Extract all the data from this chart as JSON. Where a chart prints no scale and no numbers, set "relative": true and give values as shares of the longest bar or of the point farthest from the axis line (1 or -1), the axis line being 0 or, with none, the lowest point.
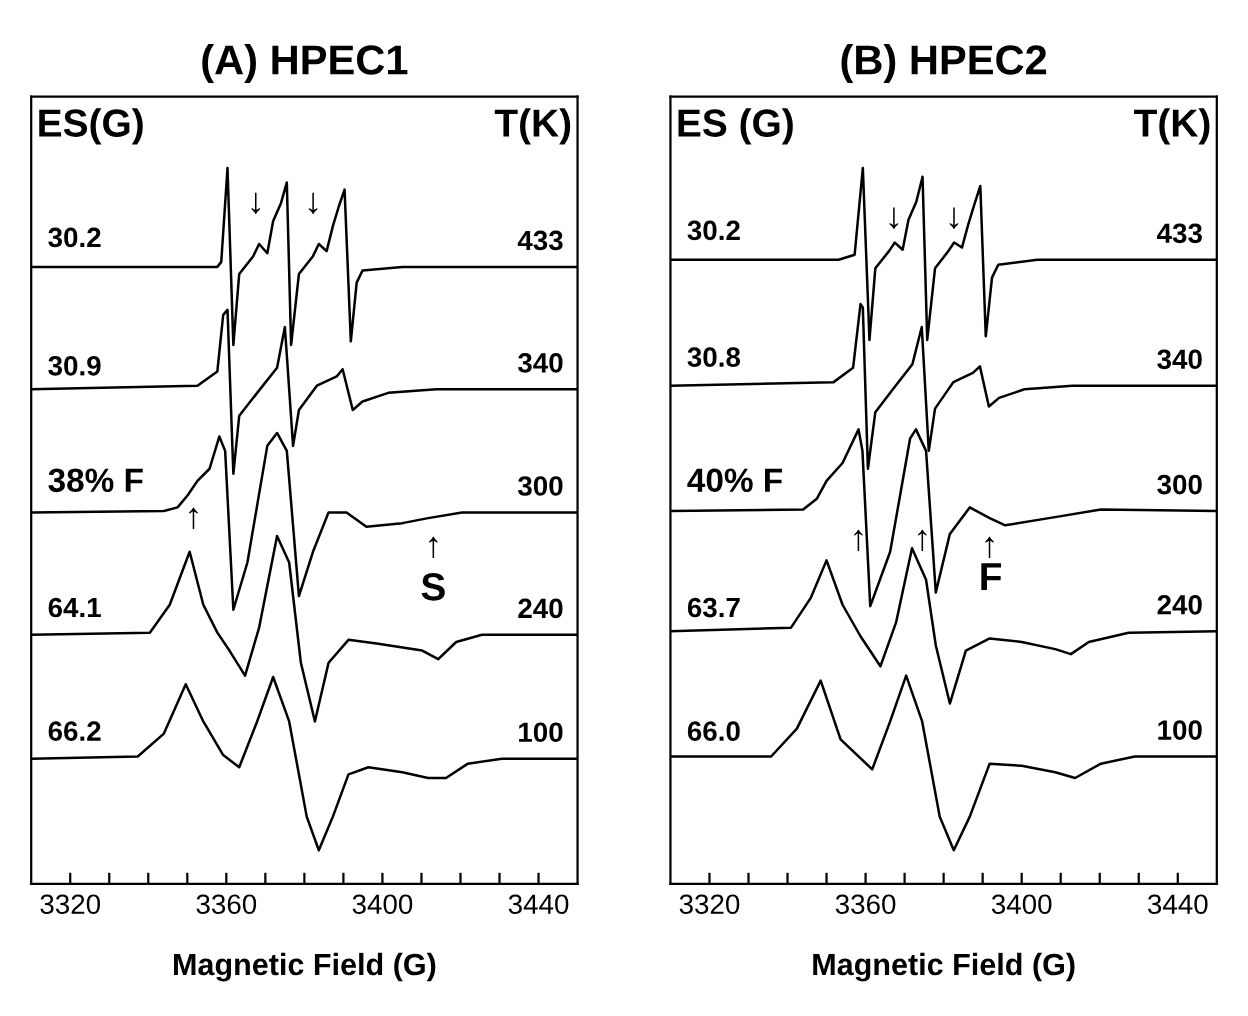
{
  "chart_data": [
    {
      "type": "line",
      "title": "(A) HPEC1",
      "xlabel": "Magnetic Field (G)",
      "relative": true,
      "legend": false,
      "grid": false,
      "xlim": [
        3310,
        3450
      ],
      "xticks": [
        {
          "value": 3320,
          "label": "3320"
        },
        {
          "value": 3330,
          "label": null
        },
        {
          "value": 3340,
          "label": null
        },
        {
          "value": 3350,
          "label": null
        },
        {
          "value": 3360,
          "label": "3360"
        },
        {
          "value": 3370,
          "label": null
        },
        {
          "value": 3380,
          "label": null
        },
        {
          "value": 3390,
          "label": null
        },
        {
          "value": 3400,
          "label": "3400"
        },
        {
          "value": 3410,
          "label": null
        },
        {
          "value": 3420,
          "label": null
        },
        {
          "value": 3430,
          "label": null
        },
        {
          "value": 3440,
          "label": "3440"
        }
      ],
      "tick_labels": "x",
      "series": [
        {
          "name": "433",
          "color": "#000000",
          "x": [
            3310,
            3354.1,
            3357.7,
            3358.7,
            3360.3,
            3361.8,
            3363.3,
            3366.9,
            3368.4,
            3370.5,
            3372.0,
            3374.0,
            3375.5,
            3376.6,
            3378.6,
            3382.2,
            3383.7,
            3385.7,
            3387.3,
            3388.8,
            3390.3,
            3391.9,
            3393.4,
            3394.9,
            3405.1,
            3450
          ],
          "values": [
            0.862,
            0.862,
            0.862,
            0.869,
            1.0,
            0.753,
            0.852,
            0.877,
            0.894,
            0.881,
            0.926,
            0.951,
            0.98,
            0.753,
            0.852,
            0.877,
            0.894,
            0.884,
            0.919,
            0.946,
            0.97,
            0.758,
            0.84,
            0.857,
            0.862,
            0.862
          ]
        },
        {
          "name": "340",
          "color": "#000000",
          "x": [
            3310,
            3352.6,
            3357.7,
            3359.2,
            3360.3,
            3361.8,
            3363.3,
            3367.9,
            3373.0,
            3375.0,
            3377.1,
            3378.6,
            3383.2,
            3388.3,
            3389.8,
            3392.4,
            3394.9,
            3401.5,
            3413.8,
            3450
          ],
          "values": [
            0.691,
            0.696,
            0.716,
            0.795,
            0.802,
            0.573,
            0.654,
            0.686,
            0.721,
            0.778,
            0.612,
            0.662,
            0.696,
            0.709,
            0.719,
            0.662,
            0.674,
            0.686,
            0.691,
            0.691
          ]
        },
        {
          "name": "300",
          "color": "#000000",
          "x": [
            3310,
            3344.0,
            3347.5,
            3350.1,
            3352.6,
            3355.7,
            3358.2,
            3359.7,
            3361.8,
            3365.4,
            3370.5,
            3373.0,
            3375.5,
            3378.6,
            3382.2,
            3386.2,
            3390.8,
            3395.9,
            3405.1,
            3411.7,
            3420.4,
            3450
          ],
          "values": [
            0.519,
            0.521,
            0.526,
            0.543,
            0.563,
            0.58,
            0.625,
            0.605,
            0.383,
            0.449,
            0.612,
            0.63,
            0.605,
            0.402,
            0.464,
            0.519,
            0.519,
            0.499,
            0.504,
            0.511,
            0.519,
            0.519
          ]
        },
        {
          "name": "240",
          "color": "#000000",
          "x": [
            3310,
            3340.4,
            3345.5,
            3350.6,
            3354.1,
            3357.7,
            3360.8,
            3364.8,
            3368.4,
            3373.0,
            3376.1,
            3379.1,
            3382.7,
            3386.2,
            3391.3,
            3398.5,
            3410.2,
            3414.3,
            3418.9,
            3425.5,
            3450
          ],
          "values": [
            0.348,
            0.351,
            0.39,
            0.464,
            0.39,
            0.351,
            0.326,
            0.291,
            0.358,
            0.486,
            0.449,
            0.309,
            0.227,
            0.309,
            0.341,
            0.336,
            0.326,
            0.314,
            0.338,
            0.348,
            0.348
          ]
        },
        {
          "name": "100",
          "color": "#000000",
          "x": [
            3310,
            3337.3,
            3344.0,
            3349.6,
            3354.1,
            3359.2,
            3363.3,
            3367.9,
            3372.0,
            3376.1,
            3380.6,
            3383.7,
            3387.3,
            3391.3,
            3396.4,
            3405.1,
            3411.7,
            3416.3,
            3421.9,
            3430.6,
            3450
          ],
          "values": [
            0.175,
            0.178,
            0.21,
            0.279,
            0.227,
            0.18,
            0.163,
            0.227,
            0.289,
            0.227,
            0.094,
            0.047,
            0.094,
            0.153,
            0.163,
            0.156,
            0.148,
            0.148,
            0.168,
            0.175,
            0.175
          ]
        }
      ],
      "annotations": [
        "ES(G)",
        "T(K)",
        "30.2",
        "30.9",
        "38% F",
        "64.1",
        "66.2",
        "↓",
        "↓",
        "↑",
        "↑",
        "S"
      ]
    },
    {
      "type": "line",
      "title": "(B) HPEC2",
      "xlabel": "Magnetic Field (G)",
      "relative": true,
      "legend": false,
      "grid": false,
      "xlim": [
        3310,
        3450
      ],
      "xticks": [
        {
          "value": 3320,
          "label": "3320"
        },
        {
          "value": 3330,
          "label": null
        },
        {
          "value": 3340,
          "label": null
        },
        {
          "value": 3350,
          "label": null
        },
        {
          "value": 3360,
          "label": "3360"
        },
        {
          "value": 3370,
          "label": null
        },
        {
          "value": 3380,
          "label": null
        },
        {
          "value": 3390,
          "label": null
        },
        {
          "value": 3400,
          "label": "3400"
        },
        {
          "value": 3410,
          "label": null
        },
        {
          "value": 3420,
          "label": null
        },
        {
          "value": 3430,
          "label": null
        },
        {
          "value": 3440,
          "label": "3440"
        }
      ],
      "tick_labels": "x",
      "series": [
        {
          "name": "433",
          "color": "#000000",
          "x": [
            3310,
            3353.1,
            3357.2,
            3359.3,
            3361.0,
            3362.5,
            3366.0,
            3367.5,
            3369.5,
            3371.0,
            3373.0,
            3374.6,
            3375.8,
            3377.8,
            3381.2,
            3382.7,
            3384.7,
            3386.3,
            3387.8,
            3389.4,
            3390.8,
            3392.4,
            3394.0,
            3404,
            3450
          ],
          "values": [
            0.872,
            0.872,
            0.879,
            1.0,
            0.76,
            0.86,
            0.884,
            0.896,
            0.886,
            0.928,
            0.953,
            0.988,
            0.76,
            0.86,
            0.884,
            0.896,
            0.889,
            0.921,
            0.948,
            0.975,
            0.765,
            0.847,
            0.865,
            0.872,
            0.872
          ]
        },
        {
          "name": "340",
          "color": "#000000",
          "x": [
            3310,
            3351.8,
            3356.8,
            3358.7,
            3359.3,
            3360.6,
            3362.5,
            3367,
            3372,
            3374.4,
            3376.2,
            3377.8,
            3382.5,
            3387.5,
            3389.3,
            3391.6,
            3394.2,
            3400.7,
            3413,
            3450
          ],
          "values": [
            0.696,
            0.701,
            0.721,
            0.81,
            0.805,
            0.58,
            0.659,
            0.691,
            0.726,
            0.778,
            0.605,
            0.664,
            0.701,
            0.714,
            0.723,
            0.667,
            0.679,
            0.691,
            0.696,
            0.696
          ]
        },
        {
          "name": "300",
          "color": "#000000",
          "x": [
            3310,
            3344.0,
            3347.5,
            3350.0,
            3354.1,
            3358.2,
            3359.2,
            3361.2,
            3366.3,
            3371.4,
            3372.9,
            3375.5,
            3378.0,
            3381.6,
            3386.7,
            3391.8,
            3395.8,
            3407.0,
            3420.3,
            3450
          ],
          "values": [
            0.521,
            0.523,
            0.538,
            0.563,
            0.588,
            0.635,
            0.605,
            0.388,
            0.464,
            0.622,
            0.635,
            0.605,
            0.407,
            0.489,
            0.526,
            0.511,
            0.501,
            0.511,
            0.523,
            0.521
          ]
        },
        {
          "name": "240",
          "color": "#000000",
          "x": [
            3310,
            3340.9,
            3346.0,
            3350.0,
            3354.1,
            3358.7,
            3363.8,
            3367.8,
            3371.9,
            3375.5,
            3378.0,
            3381.6,
            3385.7,
            3391.8,
            3400.0,
            3408.6,
            3412.6,
            3417.2,
            3427.4,
            3450
          ],
          "values": [
            0.353,
            0.358,
            0.4,
            0.452,
            0.39,
            0.346,
            0.304,
            0.365,
            0.469,
            0.425,
            0.333,
            0.252,
            0.326,
            0.343,
            0.338,
            0.328,
            0.321,
            0.338,
            0.351,
            0.353
          ]
        },
        {
          "name": "100",
          "color": "#000000",
          "x": [
            3310,
            3335.8,
            3342.4,
            3348.5,
            3353.6,
            3361.7,
            3366.3,
            3370.4,
            3374.5,
            3379.0,
            3382.6,
            3386.7,
            3391.8,
            3400.0,
            3408.6,
            3413.7,
            3420.3,
            3429.0,
            3450
          ],
          "values": [
            0.178,
            0.178,
            0.217,
            0.284,
            0.202,
            0.16,
            0.227,
            0.291,
            0.227,
            0.094,
            0.047,
            0.094,
            0.168,
            0.165,
            0.156,
            0.148,
            0.168,
            0.178,
            0.178
          ]
        }
      ],
      "annotations": [
        "ES (G)",
        "T(K)",
        "30.2",
        "30.8",
        "40% F",
        "63.7",
        "66.0",
        "↓",
        "↓",
        "↑",
        "↑",
        "↑",
        "F"
      ]
    }
  ]
}
